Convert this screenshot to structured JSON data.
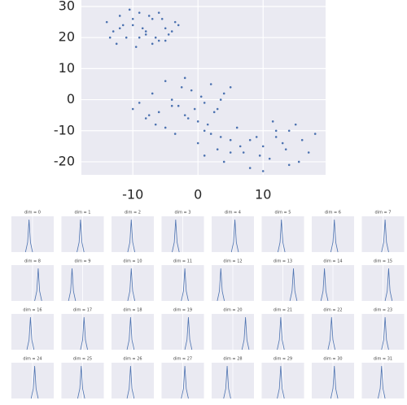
{
  "chart_data": [
    {
      "type": "scatter",
      "color": "#4c72b0",
      "grid": true,
      "xlim": [
        -17.9,
        19.6
      ],
      "ylim": [
        -24.2,
        32.1
      ],
      "xticks": [
        -10,
        0,
        10
      ],
      "yticks": [
        -20,
        -10,
        0,
        10,
        20,
        30
      ],
      "x": [
        -14,
        -13,
        -12,
        -11,
        -10,
        -9,
        -8,
        -7,
        -6,
        -5,
        -4,
        -3.5,
        -12.5,
        -10.5,
        -9.5,
        -8.5,
        -7.5,
        -6.5,
        -5.5,
        -11.5,
        -13.5,
        -8,
        -7,
        -10,
        -9,
        -6,
        -4.5,
        -12,
        -5,
        -3,
        -10,
        -9,
        -8,
        -7,
        -6,
        -5,
        -4,
        -3,
        -2,
        -1,
        0,
        1,
        2,
        3,
        4,
        5,
        -6.5,
        -3.5,
        -1.5,
        0.5,
        2.5,
        -5,
        -2,
        1,
        -4,
        -0.5,
        3.5,
        -7.5,
        -2.5,
        1.5,
        0,
        1,
        2,
        3,
        4,
        5,
        6,
        7,
        8,
        9,
        10,
        11,
        12,
        13,
        14,
        15,
        16,
        17,
        18,
        3.5,
        6.5,
        9.5,
        11.5,
        13.5,
        15.5,
        8,
        10,
        12,
        5,
        14
      ],
      "values": [
        25,
        22,
        27,
        20,
        24,
        28,
        21,
        26,
        19,
        23,
        22,
        25,
        18,
        29,
        17,
        23,
        27,
        20,
        26,
        24,
        20,
        22,
        18,
        26,
        20,
        28,
        21,
        23,
        19,
        24,
        -3,
        -1,
        -6,
        2,
        -4,
        -9,
        0,
        -2,
        -5,
        3,
        -7,
        -1,
        5,
        -3,
        2,
        4,
        -8,
        -11,
        -6,
        1,
        -4,
        6,
        7,
        -10,
        -2,
        -3,
        0,
        -5,
        4,
        -8,
        -14,
        -18,
        -11,
        -16,
        -20,
        -13,
        -9,
        -17,
        -22,
        -12,
        -15,
        -19,
        -10,
        -14,
        -21,
        -8,
        -13,
        -17,
        -11,
        -12,
        -15,
        -18,
        -7,
        -16,
        -20,
        -13,
        -23,
        -12,
        -17,
        -10
      ]
    },
    {
      "type": "line",
      "title": "dim = 0",
      "x": [
        -1,
        -0.7,
        -0.5,
        -0.3,
        0
      ],
      "values": [
        0,
        0.3,
        1,
        0.3,
        0
      ],
      "xlim": [
        -3,
        3
      ],
      "ylim": [
        0,
        1.1
      ],
      "color": "#4c72b0"
    },
    {
      "type": "line",
      "title": "dim = 1",
      "x": [
        -0.8,
        -0.5,
        -0.3,
        -0.1,
        0.2
      ],
      "values": [
        0,
        0.3,
        1,
        0.3,
        0
      ],
      "xlim": [
        -3,
        3
      ],
      "ylim": [
        0,
        1.1
      ],
      "color": "#4c72b0"
    },
    {
      "type": "line",
      "title": "dim = 2",
      "x": [
        -0.7,
        -0.4,
        -0.2,
        0,
        0.3
      ],
      "values": [
        0,
        0.3,
        1,
        0.3,
        0
      ],
      "xlim": [
        -3,
        3
      ],
      "ylim": [
        0,
        1.1
      ],
      "color": "#4c72b0"
    },
    {
      "type": "line",
      "title": "dim = 3",
      "x": [
        -1.5,
        -1.2,
        -1,
        -0.8,
        -0.5
      ],
      "values": [
        0,
        0.3,
        1,
        0.3,
        0
      ],
      "xlim": [
        -3,
        3
      ],
      "ylim": [
        0,
        1.1
      ],
      "color": "#4c72b0"
    },
    {
      "type": "line",
      "title": "dim = 4",
      "x": [
        -0.2,
        0.1,
        0.3,
        0.5,
        0.8
      ],
      "values": [
        0,
        0.3,
        1,
        0.3,
        0
      ],
      "xlim": [
        -3,
        3
      ],
      "ylim": [
        0,
        1.1
      ],
      "color": "#4c72b0"
    },
    {
      "type": "line",
      "title": "dim = 5",
      "x": [
        -0.7,
        -0.4,
        -0.2,
        0,
        0.3
      ],
      "values": [
        0,
        0.3,
        1,
        0.3,
        0
      ],
      "xlim": [
        -3,
        3
      ],
      "ylim": [
        0,
        1.1
      ],
      "color": "#4c72b0"
    },
    {
      "type": "line",
      "title": "dim = 6",
      "x": [
        -0.3,
        0,
        0.2,
        0.4,
        0.7
      ],
      "values": [
        0,
        0.3,
        1,
        0.3,
        0
      ],
      "xlim": [
        -3,
        3
      ],
      "ylim": [
        0,
        1.1
      ],
      "color": "#4c72b0"
    },
    {
      "type": "line",
      "title": "dim = 7",
      "x": [
        -0.2,
        0.1,
        0.3,
        0.5,
        0.8
      ],
      "values": [
        0,
        0.3,
        1,
        0.3,
        0
      ],
      "xlim": [
        -3,
        3
      ],
      "ylim": [
        0,
        1.1
      ],
      "color": "#4c72b0"
    },
    {
      "type": "line",
      "title": "dim = 8",
      "x": [
        0.3,
        0.6,
        0.8,
        1,
        1.3
      ],
      "values": [
        0,
        0.3,
        1,
        0.3,
        0
      ],
      "xlim": [
        -3,
        3
      ],
      "ylim": [
        0,
        1.1
      ],
      "color": "#4c72b0"
    },
    {
      "type": "line",
      "title": "dim = 9",
      "x": [
        -2,
        -1.7,
        -1.5,
        -1.3,
        -1
      ],
      "values": [
        0,
        0.3,
        1,
        0.3,
        0
      ],
      "xlim": [
        -3,
        3
      ],
      "ylim": [
        0,
        1.1
      ],
      "color": "#4c72b0"
    },
    {
      "type": "line",
      "title": "dim = 10",
      "x": [
        -0.7,
        -0.4,
        -0.2,
        0,
        0.3
      ],
      "values": [
        0,
        0.3,
        1,
        0.3,
        0
      ],
      "xlim": [
        -3,
        3
      ],
      "ylim": [
        0,
        1.1
      ],
      "color": "#4c72b0"
    },
    {
      "type": "line",
      "title": "dim = 11",
      "x": [
        -0.2,
        0.1,
        0.3,
        0.5,
        0.8
      ],
      "values": [
        0,
        0.3,
        1,
        0.3,
        0
      ],
      "xlim": [
        -3,
        3
      ],
      "ylim": [
        0,
        1.1
      ],
      "color": "#4c72b0"
    },
    {
      "type": "line",
      "title": "dim = 12",
      "x": [
        -2.2,
        -1.9,
        -1.7,
        -1.5,
        -1.2
      ],
      "values": [
        0,
        0.3,
        1,
        0.3,
        0
      ],
      "xlim": [
        -3,
        3
      ],
      "ylim": [
        0,
        1.1
      ],
      "color": "#4c72b0"
    },
    {
      "type": "line",
      "title": "dim = 13",
      "x": [
        1,
        1.3,
        1.5,
        1.7,
        2
      ],
      "values": [
        0,
        0.3,
        1,
        0.3,
        0
      ],
      "xlim": [
        -3,
        3
      ],
      "ylim": [
        0,
        1.1
      ],
      "color": "#4c72b0"
    },
    {
      "type": "line",
      "title": "dim = 14",
      "x": [
        -1.7,
        -1.4,
        -1.2,
        -1,
        -0.7
      ],
      "values": [
        0,
        0.3,
        1,
        0.3,
        0
      ],
      "xlim": [
        -3,
        3
      ],
      "ylim": [
        0,
        1.1
      ],
      "color": "#4c72b0"
    },
    {
      "type": "line",
      "title": "dim = 15",
      "x": [
        0.3,
        0.6,
        0.8,
        1,
        1.3
      ],
      "values": [
        0,
        0.3,
        1,
        0.3,
        0
      ],
      "xlim": [
        -3,
        3
      ],
      "ylim": [
        0,
        1.1
      ],
      "color": "#4c72b0"
    },
    {
      "type": "line",
      "title": "dim = 16",
      "x": [
        -0.8,
        -0.5,
        -0.3,
        -0.1,
        0.2
      ],
      "values": [
        0,
        0.3,
        1,
        0.3,
        0
      ],
      "xlim": [
        -3,
        3
      ],
      "ylim": [
        0,
        1.1
      ],
      "color": "#4c72b0"
    },
    {
      "type": "line",
      "title": "dim = 17",
      "x": [
        -0.3,
        0,
        0.2,
        0.4,
        0.7
      ],
      "values": [
        0,
        0.3,
        1,
        0.3,
        0
      ],
      "xlim": [
        -3,
        3
      ],
      "ylim": [
        0,
        1.1
      ],
      "color": "#4c72b0"
    },
    {
      "type": "line",
      "title": "dim = 18",
      "x": [
        -0.8,
        -0.5,
        -0.3,
        -0.1,
        0.2
      ],
      "values": [
        0,
        0.3,
        1,
        0.3,
        0
      ],
      "xlim": [
        -3,
        3
      ],
      "ylim": [
        0,
        1.1
      ],
      "color": "#4c72b0"
    },
    {
      "type": "line",
      "title": "dim = 19",
      "x": [
        0.3,
        0.6,
        0.8,
        1,
        1.3
      ],
      "values": [
        0,
        0.3,
        1,
        0.3,
        0
      ],
      "xlim": [
        -3,
        3
      ],
      "ylim": [
        0,
        1.1
      ],
      "color": "#4c72b0"
    },
    {
      "type": "line",
      "title": "dim = 20",
      "x": [
        1.3,
        1.6,
        1.8,
        2,
        2.3
      ],
      "values": [
        0,
        0.3,
        1,
        0.3,
        0
      ],
      "xlim": [
        -3,
        3
      ],
      "ylim": [
        0,
        1.1
      ],
      "color": "#4c72b0"
    },
    {
      "type": "line",
      "title": "dim = 21",
      "x": [
        -0.8,
        -0.5,
        -0.3,
        -0.1,
        0.2
      ],
      "values": [
        0,
        0.3,
        1,
        0.3,
        0
      ],
      "xlim": [
        -3,
        3
      ],
      "ylim": [
        0,
        1.1
      ],
      "color": "#4c72b0"
    },
    {
      "type": "line",
      "title": "dim = 22",
      "x": [
        -0.7,
        -0.4,
        -0.2,
        0,
        0.3
      ],
      "values": [
        0,
        0.3,
        1,
        0.3,
        0
      ],
      "xlim": [
        -3,
        3
      ],
      "ylim": [
        0,
        1.1
      ],
      "color": "#4c72b0"
    },
    {
      "type": "line",
      "title": "dim = 23",
      "x": [
        -0.2,
        0.1,
        0.3,
        0.5,
        0.8
      ],
      "values": [
        0,
        0.3,
        1,
        0.3,
        0
      ],
      "xlim": [
        -3,
        3
      ],
      "ylim": [
        0,
        1.1
      ],
      "color": "#4c72b0"
    },
    {
      "type": "line",
      "title": "dim = 24",
      "x": [
        -0.2,
        0.1,
        0.3,
        0.5,
        0.8
      ],
      "values": [
        0,
        0.3,
        1,
        0.3,
        0
      ],
      "xlim": [
        -3,
        3
      ],
      "ylim": [
        0,
        1.1
      ],
      "color": "#4c72b0"
    },
    {
      "type": "line",
      "title": "dim = 25",
      "x": [
        -0.7,
        -0.4,
        -0.2,
        0,
        0.3
      ],
      "values": [
        0,
        0.3,
        1,
        0.3,
        0
      ],
      "xlim": [
        -3,
        3
      ],
      "ylim": [
        0,
        1.1
      ],
      "color": "#4c72b0"
    },
    {
      "type": "line",
      "title": "dim = 26",
      "x": [
        -0.8,
        -0.5,
        -0.3,
        -0.1,
        0.2
      ],
      "values": [
        0,
        0.3,
        1,
        0.3,
        0
      ],
      "xlim": [
        -3,
        3
      ],
      "ylim": [
        0,
        1.1
      ],
      "color": "#4c72b0"
    },
    {
      "type": "line",
      "title": "dim = 27",
      "x": [
        -0.2,
        0.1,
        0.3,
        0.5,
        0.8
      ],
      "values": [
        0,
        0.3,
        1,
        0.3,
        0
      ],
      "xlim": [
        -3,
        3
      ],
      "ylim": [
        0,
        1.1
      ],
      "color": "#4c72b0"
    },
    {
      "type": "line",
      "title": "dim = 28",
      "x": [
        -1.3,
        -1,
        -0.8,
        -0.6,
        -0.3
      ],
      "values": [
        0,
        0.3,
        1,
        0.3,
        0
      ],
      "xlim": [
        -3,
        3
      ],
      "ylim": [
        0,
        1.1
      ],
      "color": "#4c72b0"
    },
    {
      "type": "line",
      "title": "dim = 29",
      "x": [
        -0.8,
        -0.5,
        -0.3,
        -0.1,
        0.2
      ],
      "values": [
        0,
        0.3,
        1,
        0.3,
        0
      ],
      "xlim": [
        -3,
        3
      ],
      "ylim": [
        0,
        1.1
      ],
      "color": "#4c72b0"
    },
    {
      "type": "line",
      "title": "dim = 30",
      "x": [
        -0.3,
        0,
        0.2,
        0.4,
        0.7
      ],
      "values": [
        0,
        0.3,
        1,
        0.3,
        0
      ],
      "xlim": [
        -3,
        3
      ],
      "ylim": [
        0,
        1.1
      ],
      "color": "#4c72b0"
    },
    {
      "type": "line",
      "title": "dim = 31",
      "x": [
        -0.7,
        -0.4,
        -0.2,
        0,
        0.3
      ],
      "values": [
        0,
        0.3,
        1,
        0.3,
        0
      ],
      "xlim": [
        -3,
        3
      ],
      "ylim": [
        0,
        1.1
      ],
      "color": "#4c72b0"
    }
  ]
}
